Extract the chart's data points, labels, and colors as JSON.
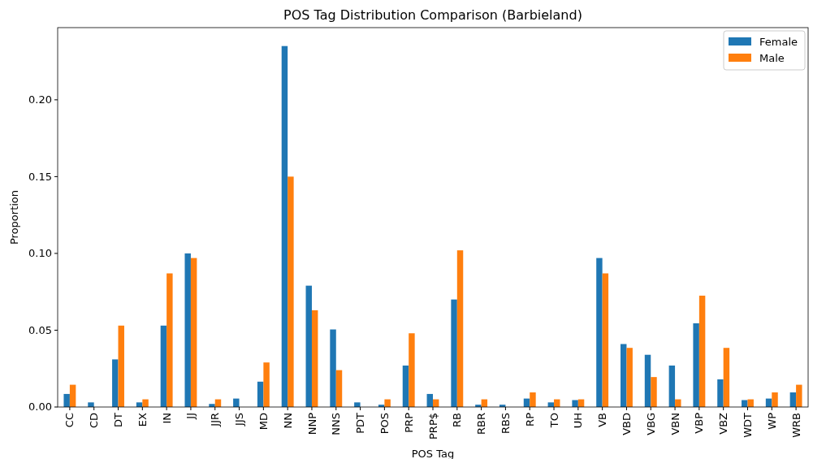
{
  "chart_data": {
    "type": "bar",
    "title": "POS Tag Distribution Comparison (Barbieland)",
    "xlabel": "POS Tag",
    "ylabel": "Proportion",
    "categories": [
      "CC",
      "CD",
      "DT",
      "EX",
      "IN",
      "JJ",
      "JJR",
      "JJS",
      "MD",
      "NN",
      "NNP",
      "NNS",
      "PDT",
      "POS",
      "PRP",
      "PRP$",
      "RB",
      "RBR",
      "RBS",
      "RP",
      "TO",
      "UH",
      "VB",
      "VBD",
      "VBG",
      "VBN",
      "VBP",
      "VBZ",
      "WDT",
      "WP",
      "WRB"
    ],
    "series": [
      {
        "name": "Female",
        "color": "#1f77b4",
        "values": [
          0.0085,
          0.003,
          0.031,
          0.003,
          0.053,
          0.1,
          0.002,
          0.0055,
          0.0165,
          0.235,
          0.079,
          0.0505,
          0.003,
          0.0015,
          0.027,
          0.0085,
          0.07,
          0.0015,
          0.0015,
          0.0055,
          0.003,
          0.0045,
          0.097,
          0.041,
          0.034,
          0.027,
          0.0545,
          0.018,
          0.0045,
          0.0055,
          0.0095
        ]
      },
      {
        "name": "Male",
        "color": "#ff7f0e",
        "values": [
          0.0145,
          0,
          0.053,
          0.005,
          0.087,
          0.097,
          0.005,
          0,
          0.029,
          0.15,
          0.063,
          0.024,
          0,
          0.005,
          0.048,
          0.005,
          0.102,
          0.005,
          0,
          0.0095,
          0.005,
          0.005,
          0.087,
          0.0385,
          0.0195,
          0.005,
          0.0725,
          0.0385,
          0.005,
          0.0095,
          0.0145
        ]
      }
    ],
    "ylim": [
      0,
      0.247
    ],
    "yticks": [
      {
        "value": 0,
        "label": "0.00"
      },
      {
        "value": 0.05,
        "label": "0.05"
      },
      {
        "value": 0.1,
        "label": "0.10"
      },
      {
        "value": 0.15,
        "label": "0.15"
      },
      {
        "value": 0.2,
        "label": "0.20"
      }
    ],
    "legend": "top right"
  }
}
